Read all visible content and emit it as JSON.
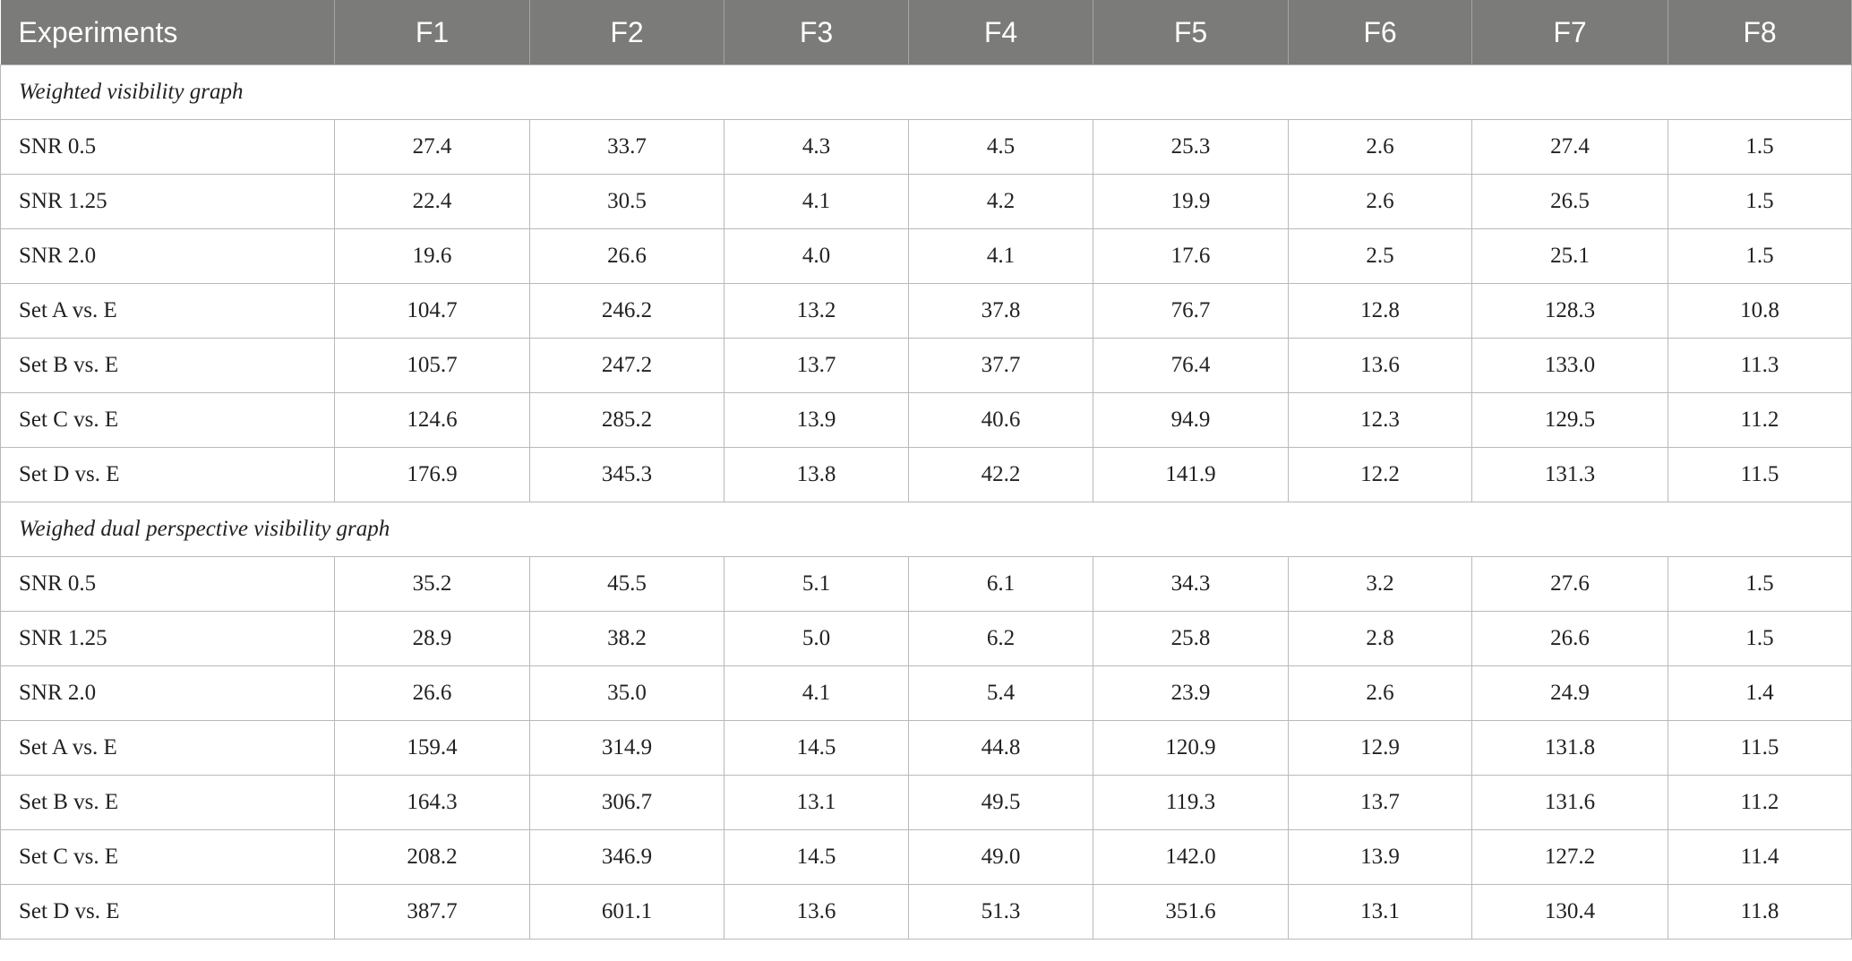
{
  "table": {
    "header": [
      "Experiments",
      "F1",
      "F2",
      "F3",
      "F4",
      "F5",
      "F6",
      "F7",
      "F8"
    ],
    "sections": [
      {
        "title": "Weighted visibility graph",
        "rows": [
          [
            "SNR 0.5",
            "27.4",
            "33.7",
            "4.3",
            "4.5",
            "25.3",
            "2.6",
            "27.4",
            "1.5"
          ],
          [
            "SNR 1.25",
            "22.4",
            "30.5",
            "4.1",
            "4.2",
            "19.9",
            "2.6",
            "26.5",
            "1.5"
          ],
          [
            "SNR 2.0",
            "19.6",
            "26.6",
            "4.0",
            "4.1",
            "17.6",
            "2.5",
            "25.1",
            "1.5"
          ],
          [
            "Set A vs. E",
            "104.7",
            "246.2",
            "13.2",
            "37.8",
            "76.7",
            "12.8",
            "128.3",
            "10.8"
          ],
          [
            "Set B vs. E",
            "105.7",
            "247.2",
            "13.7",
            "37.7",
            "76.4",
            "13.6",
            "133.0",
            "11.3"
          ],
          [
            "Set C vs. E",
            "124.6",
            "285.2",
            "13.9",
            "40.6",
            "94.9",
            "12.3",
            "129.5",
            "11.2"
          ],
          [
            "Set D vs. E",
            "176.9",
            "345.3",
            "13.8",
            "42.2",
            "141.9",
            "12.2",
            "131.3",
            "11.5"
          ]
        ]
      },
      {
        "title": "Weighed dual perspective visibility graph",
        "rows": [
          [
            "SNR 0.5",
            "35.2",
            "45.5",
            "5.1",
            "6.1",
            "34.3",
            "3.2",
            "27.6",
            "1.5"
          ],
          [
            "SNR 1.25",
            "28.9",
            "38.2",
            "5.0",
            "6.2",
            "25.8",
            "2.8",
            "26.6",
            "1.5"
          ],
          [
            "SNR 2.0",
            "26.6",
            "35.0",
            "4.1",
            "5.4",
            "23.9",
            "2.6",
            "24.9",
            "1.4"
          ],
          [
            "Set A vs. E",
            "159.4",
            "314.9",
            "14.5",
            "44.8",
            "120.9",
            "12.9",
            "131.8",
            "11.5"
          ],
          [
            "Set B vs. E",
            "164.3",
            "306.7",
            "13.1",
            "49.5",
            "119.3",
            "13.7",
            "131.6",
            "11.2"
          ],
          [
            "Set C vs. E",
            "208.2",
            "346.9",
            "14.5",
            "49.0",
            "142.0",
            "13.9",
            "127.2",
            "11.4"
          ],
          [
            "Set D vs. E",
            "387.7",
            "601.1",
            "13.6",
            "51.3",
            "351.6",
            "13.1",
            "130.4",
            "11.8"
          ]
        ]
      }
    ]
  }
}
